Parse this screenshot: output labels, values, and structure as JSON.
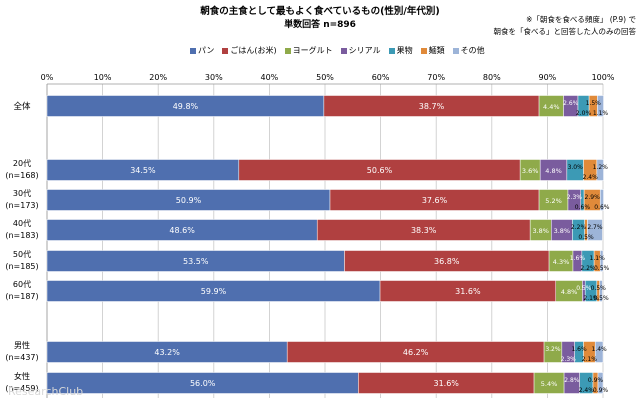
{
  "chart_data": {
    "type": "bar",
    "orientation": "horizontal",
    "stacked": true,
    "title": "朝食の主食として最もよく食べているもの(性別/年代別)",
    "subtitle": "単数回答 n=896",
    "notes": [
      "※「朝食を食べる頻度」 (P.9) で",
      "朝食を「食べる」と回答した人のみの回答"
    ],
    "x_ticks": [
      "0%",
      "10%",
      "20%",
      "30%",
      "40%",
      "50%",
      "60%",
      "70%",
      "80%",
      "90%",
      "100%"
    ],
    "xlim": [
      0,
      100
    ],
    "categories": [
      "全体",
      "20代|(n=168)",
      "30代|(n=173)",
      "40代|(n=183)",
      "50代|(n=185)",
      "60代|(n=187)",
      "男性|(n=437)",
      "女性|(n=459)"
    ],
    "series": [
      {
        "name": "パン",
        "color": "#4F6FAF",
        "values": [
          49.8,
          34.5,
          50.9,
          48.6,
          53.5,
          59.9,
          43.2,
          56.0
        ]
      },
      {
        "name": "ごはん(お米)",
        "color": "#B04040",
        "values": [
          38.7,
          50.6,
          37.6,
          38.3,
          36.8,
          31.6,
          46.2,
          31.6
        ]
      },
      {
        "name": "ヨーグルト",
        "color": "#8FAA4A",
        "values": [
          4.4,
          3.6,
          5.2,
          3.8,
          4.3,
          4.8,
          3.2,
          5.4
        ]
      },
      {
        "name": "シリアル",
        "color": "#7A5C9E",
        "values": [
          2.6,
          4.8,
          2.3,
          3.8,
          1.6,
          0.5,
          2.3,
          2.8
        ]
      },
      {
        "name": "果物",
        "color": "#3C9AB5",
        "values": [
          2.0,
          3.0,
          0.6,
          2.2,
          2.2,
          2.1,
          1.6,
          2.4
        ]
      },
      {
        "name": "麺類",
        "color": "#E08A3A",
        "values": [
          1.5,
          2.4,
          2.9,
          0.5,
          1.1,
          0.5,
          2.1,
          0.9
        ]
      },
      {
        "name": "その他",
        "color": "#9DB4D8",
        "values": [
          1.1,
          1.2,
          0.6,
          2.7,
          0.5,
          0.5,
          1.4,
          0.9
        ]
      }
    ]
  },
  "watermark": "ResearchClub"
}
